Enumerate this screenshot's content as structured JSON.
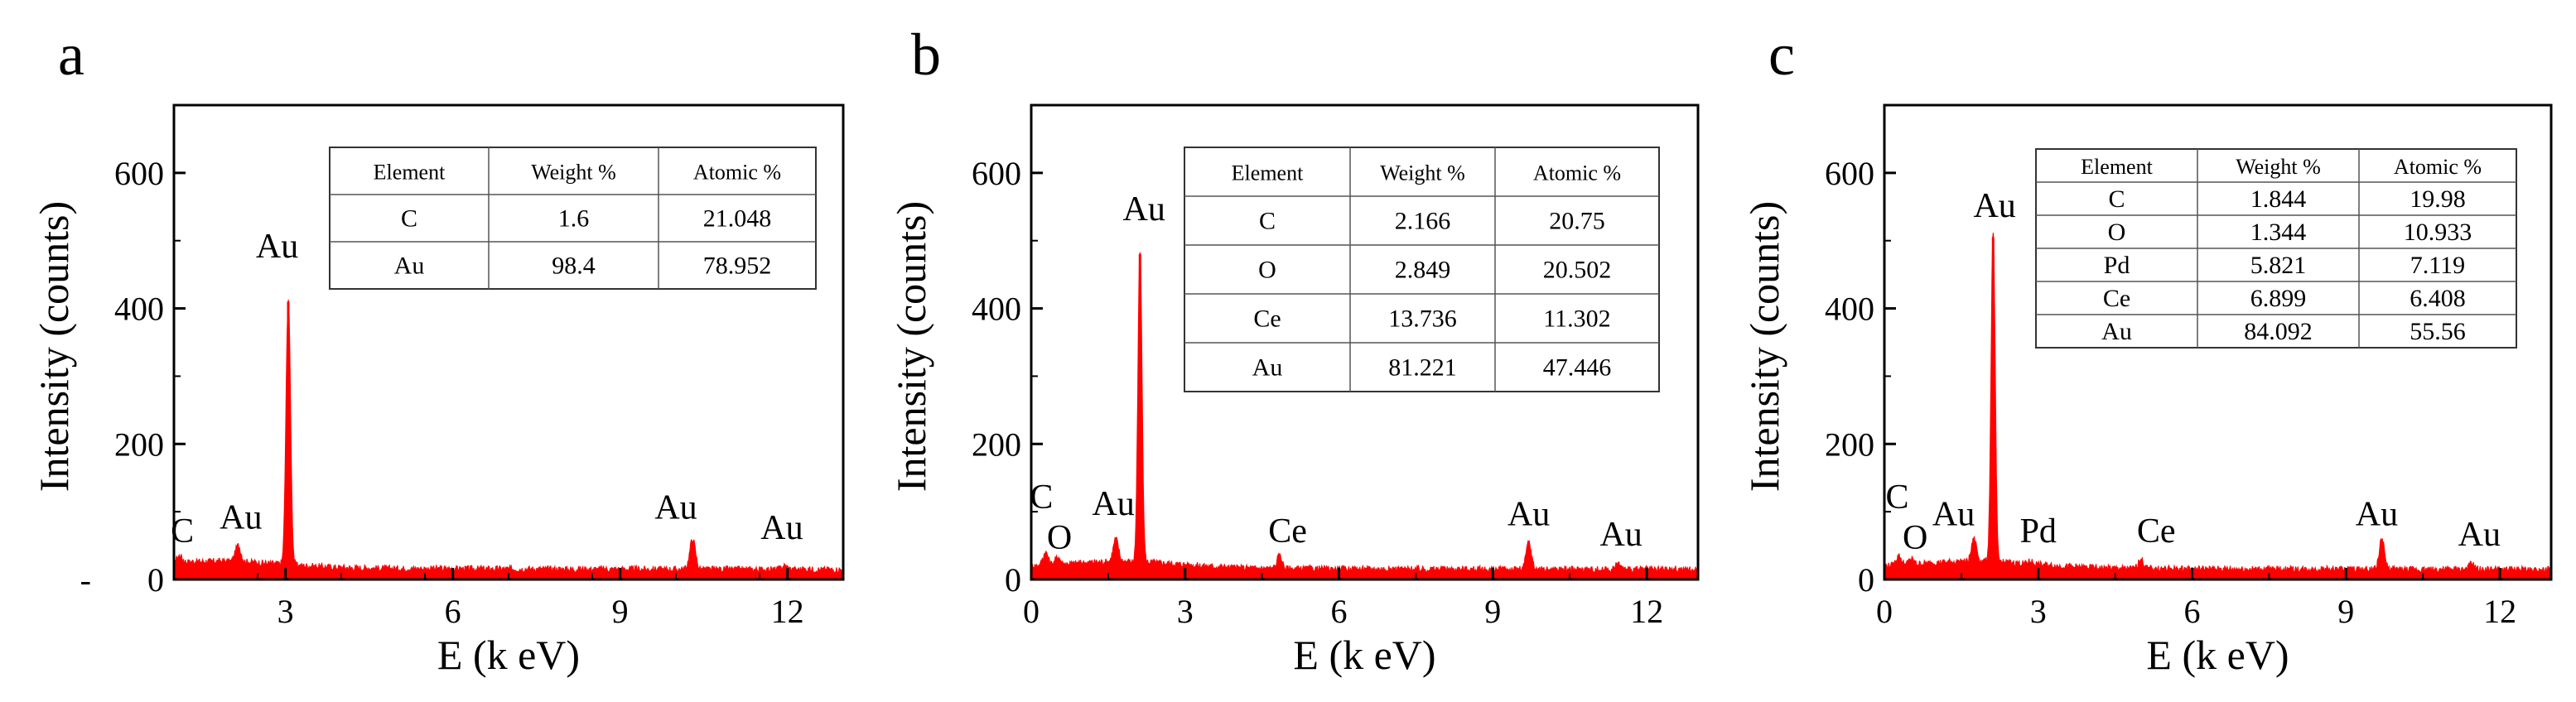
{
  "chart_data": [
    {
      "panel_label": "a",
      "type": "line",
      "xlabel": "E (k eV)",
      "ylabel": "Intensity (counts)",
      "xlim": [
        1.0,
        13.0
      ],
      "ylim": [
        0,
        700
      ],
      "x_ticks": [
        "3",
        "6",
        "9",
        "12"
      ],
      "x_tick_values": [
        3,
        6,
        9,
        12
      ],
      "y_ticks": [
        "-",
        "0",
        "200",
        "400",
        "600"
      ],
      "y_tick_values": [
        0,
        0,
        200,
        400,
        600
      ],
      "color": "#ff0000",
      "peaks": [
        {
          "x": 1.1,
          "y": 30
        },
        {
          "x": 2.15,
          "y": 45
        },
        {
          "x": 3.05,
          "y": 410
        },
        {
          "x": 10.3,
          "y": 55
        },
        {
          "x": 11.95,
          "y": 15
        }
      ],
      "annotations": [
        {
          "text": "C",
          "x": 1.15,
          "y": 55
        },
        {
          "text": "Au",
          "x": 2.2,
          "y": 75
        },
        {
          "text": "Au",
          "x": 2.85,
          "y": 475
        },
        {
          "text": "Au",
          "x": 10.0,
          "y": 90
        },
        {
          "text": "Au",
          "x": 11.9,
          "y": 60
        }
      ],
      "table": {
        "headers": [
          "Element",
          "Weight %",
          "Atomic %"
        ],
        "rows": [
          [
            "C",
            "1.6",
            "21.048"
          ],
          [
            "Au",
            "98.4",
            "78.952"
          ]
        ]
      }
    },
    {
      "panel_label": "b",
      "type": "line",
      "xlabel": "E (k eV)",
      "ylabel": "Intensity (counts)",
      "xlim": [
        0,
        13.0
      ],
      "ylim": [
        0,
        700
      ],
      "x_ticks": [
        "0",
        "3",
        "6",
        "9",
        "12"
      ],
      "x_tick_values": [
        0,
        3,
        6,
        9,
        12
      ],
      "y_ticks": [
        "0",
        "200",
        "400",
        "600"
      ],
      "y_tick_values": [
        0,
        200,
        400,
        600
      ],
      "color": "#ff0000",
      "peaks": [
        {
          "x": 0.28,
          "y": 35
        },
        {
          "x": 0.52,
          "y": 28
        },
        {
          "x": 1.65,
          "y": 55
        },
        {
          "x": 2.12,
          "y": 480
        },
        {
          "x": 4.84,
          "y": 30
        },
        {
          "x": 9.7,
          "y": 50
        },
        {
          "x": 11.45,
          "y": 18
        }
      ],
      "annotations": [
        {
          "text": "C",
          "x": 0.2,
          "y": 105
        },
        {
          "text": "O",
          "x": 0.55,
          "y": 45
        },
        {
          "text": "Au",
          "x": 1.6,
          "y": 95
        },
        {
          "text": "Au",
          "x": 2.2,
          "y": 530
        },
        {
          "text": "Ce",
          "x": 5.0,
          "y": 55
        },
        {
          "text": "Au",
          "x": 9.7,
          "y": 80
        },
        {
          "text": "Au",
          "x": 11.5,
          "y": 50
        }
      ],
      "table": {
        "headers": [
          "Element",
          "Weight %",
          "Atomic %"
        ],
        "rows": [
          [
            "C",
            "2.166",
            "20.75"
          ],
          [
            "O",
            "2.849",
            "20.502"
          ],
          [
            "Ce",
            "13.736",
            "11.302"
          ],
          [
            "Au",
            "81.221",
            "47.446"
          ]
        ]
      }
    },
    {
      "panel_label": "c",
      "type": "line",
      "xlabel": "E (k eV)",
      "ylabel": "Intensity (counts)",
      "xlim": [
        0,
        13.0
      ],
      "ylim": [
        0,
        700
      ],
      "x_ticks": [
        "0",
        "3",
        "6",
        "9",
        "12"
      ],
      "x_tick_values": [
        0,
        3,
        6,
        9,
        12
      ],
      "y_ticks": [
        "0",
        "200",
        "400",
        "600"
      ],
      "y_tick_values": [
        0,
        200,
        400,
        600
      ],
      "color": "#ff0000",
      "peaks": [
        {
          "x": 0.28,
          "y": 30
        },
        {
          "x": 0.52,
          "y": 25
        },
        {
          "x": 1.75,
          "y": 55
        },
        {
          "x": 2.12,
          "y": 505
        },
        {
          "x": 2.85,
          "y": 22
        },
        {
          "x": 5.0,
          "y": 25
        },
        {
          "x": 9.7,
          "y": 55
        },
        {
          "x": 11.45,
          "y": 18
        }
      ],
      "annotations": [
        {
          "text": "C",
          "x": 0.25,
          "y": 105
        },
        {
          "text": "O",
          "x": 0.6,
          "y": 45
        },
        {
          "text": "Au",
          "x": 1.35,
          "y": 80
        },
        {
          "text": "Au",
          "x": 2.15,
          "y": 535
        },
        {
          "text": "Pd",
          "x": 3.0,
          "y": 55
        },
        {
          "text": "Ce",
          "x": 5.3,
          "y": 55
        },
        {
          "text": "Au",
          "x": 9.6,
          "y": 80
        },
        {
          "text": "Au",
          "x": 11.6,
          "y": 50
        }
      ],
      "table": {
        "headers": [
          "Element",
          "Weight %",
          "Atomic %"
        ],
        "rows": [
          [
            "C",
            "1.844",
            "19.98"
          ],
          [
            "O",
            "1.344",
            "10.933"
          ],
          [
            "Pd",
            "5.821",
            "7.119"
          ],
          [
            "Ce",
            "6.899",
            "6.408"
          ],
          [
            "Au",
            "84.092",
            "55.56"
          ]
        ]
      }
    }
  ]
}
